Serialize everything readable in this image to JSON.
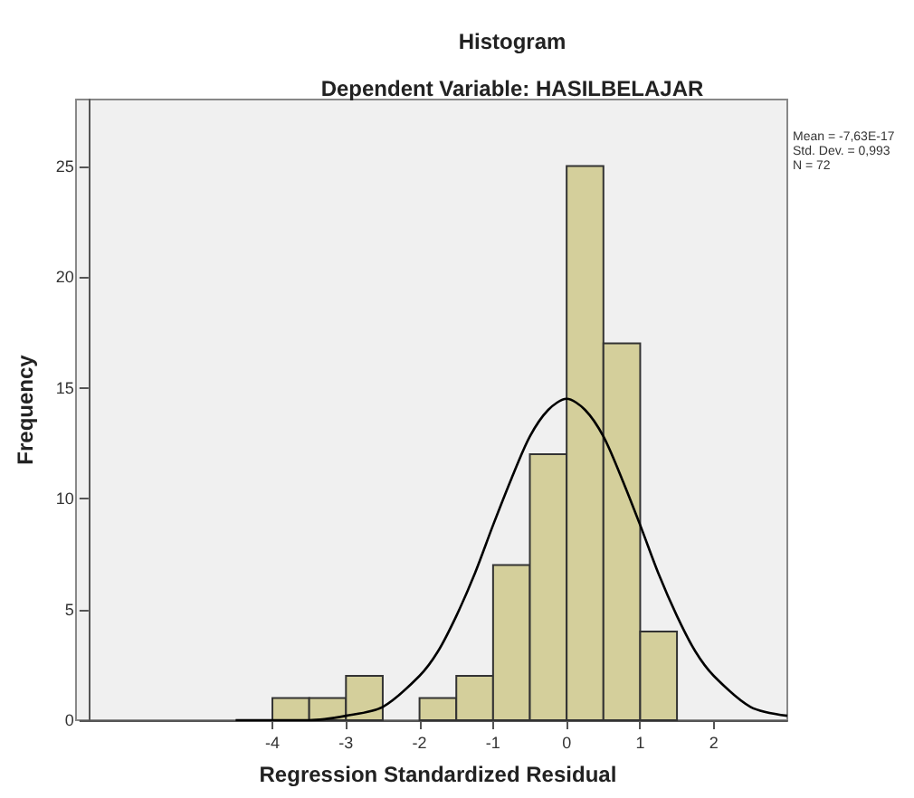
{
  "chart_data": {
    "type": "histogram",
    "title": "Histogram",
    "subtitle": "Dependent Variable: HASILBELAJAR",
    "xlabel": "Regression Standardized Residual",
    "ylabel": "Frequency",
    "bins": [
      -4,
      -3.5,
      -3,
      -2.5,
      -2,
      -1.5,
      -1,
      -0.5,
      0,
      0.5,
      1,
      1.5
    ],
    "values": [
      1,
      1,
      2,
      0,
      1,
      2,
      7,
      12,
      25,
      17,
      4
    ],
    "color": "#d4cf9b",
    "series": [
      {
        "type": "line",
        "color": "#000000",
        "x": [
          -4.5,
          -4,
          -3.5,
          -3,
          -2.5,
          -2,
          -1.75,
          -1.5,
          -1.25,
          -1,
          -0.75,
          -0.5,
          -0.25,
          0,
          0.25,
          0.5,
          0.75,
          1,
          1.25,
          1.5,
          1.75,
          2,
          2.5,
          3
        ],
        "values": [
          0,
          0,
          0,
          0.2,
          0.6,
          2,
          3.1,
          4.7,
          6.6,
          8.8,
          10.9,
          12.8,
          14,
          14.5,
          14,
          12.8,
          10.9,
          8.8,
          6.6,
          4.7,
          3.1,
          2,
          0.6,
          0.2
        ]
      }
    ],
    "marker": "none",
    "xlim": [
      -6.5,
      3
    ],
    "xticks": [
      -4,
      -3,
      -2,
      -1,
      0,
      1,
      2
    ],
    "ylim": [
      0,
      28
    ],
    "yticks": [
      0,
      5,
      10,
      15,
      20,
      25
    ],
    "grid": false,
    "annotations": [
      "Mean = -7,63E-17",
      "Std. Dev. = 0,993",
      "N = 72"
    ]
  }
}
